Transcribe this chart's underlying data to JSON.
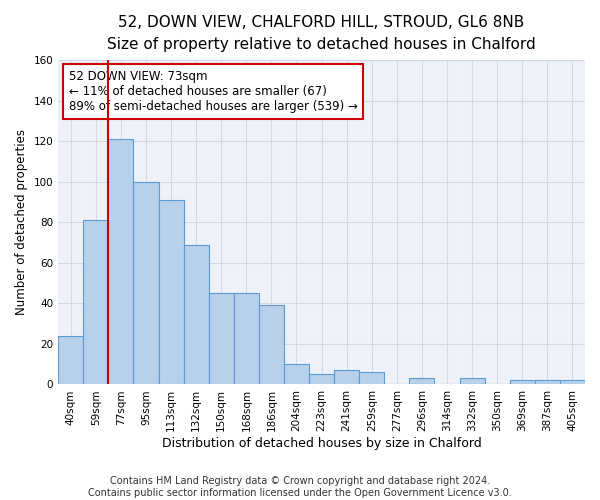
{
  "title": "52, DOWN VIEW, CHALFORD HILL, STROUD, GL6 8NB",
  "subtitle": "Size of property relative to detached houses in Chalford",
  "xlabel": "Distribution of detached houses by size in Chalford",
  "ylabel": "Number of detached properties",
  "bar_labels": [
    "40sqm",
    "59sqm",
    "77sqm",
    "95sqm",
    "113sqm",
    "132sqm",
    "150sqm",
    "168sqm",
    "186sqm",
    "204sqm",
    "223sqm",
    "241sqm",
    "259sqm",
    "277sqm",
    "296sqm",
    "314sqm",
    "332sqm",
    "350sqm",
    "369sqm",
    "387sqm",
    "405sqm"
  ],
  "bar_heights": [
    24,
    81,
    121,
    100,
    91,
    69,
    45,
    45,
    39,
    10,
    5,
    7,
    6,
    0,
    3,
    0,
    3,
    0,
    2,
    2,
    2
  ],
  "bar_color": "#b8d0ea",
  "bar_edge_color": "#5b9bd5",
  "vline_color": "#cc0000",
  "annotation_text": "52 DOWN VIEW: 73sqm\n← 11% of detached houses are smaller (67)\n89% of semi-detached houses are larger (539) →",
  "annotation_box_edgecolor": "#cc0000",
  "ylim": [
    0,
    160
  ],
  "yticks": [
    0,
    20,
    40,
    60,
    80,
    100,
    120,
    140,
    160
  ],
  "grid_color": "#d0d8e8",
  "bg_color": "#eef2f8",
  "footer_line1": "Contains HM Land Registry data © Crown copyright and database right 2024.",
  "footer_line2": "Contains public sector information licensed under the Open Government Licence v3.0.",
  "title_fontsize": 11,
  "subtitle_fontsize": 9.5,
  "xlabel_fontsize": 9,
  "ylabel_fontsize": 8.5,
  "tick_fontsize": 7.5,
  "annotation_fontsize": 8.5,
  "footer_fontsize": 7
}
